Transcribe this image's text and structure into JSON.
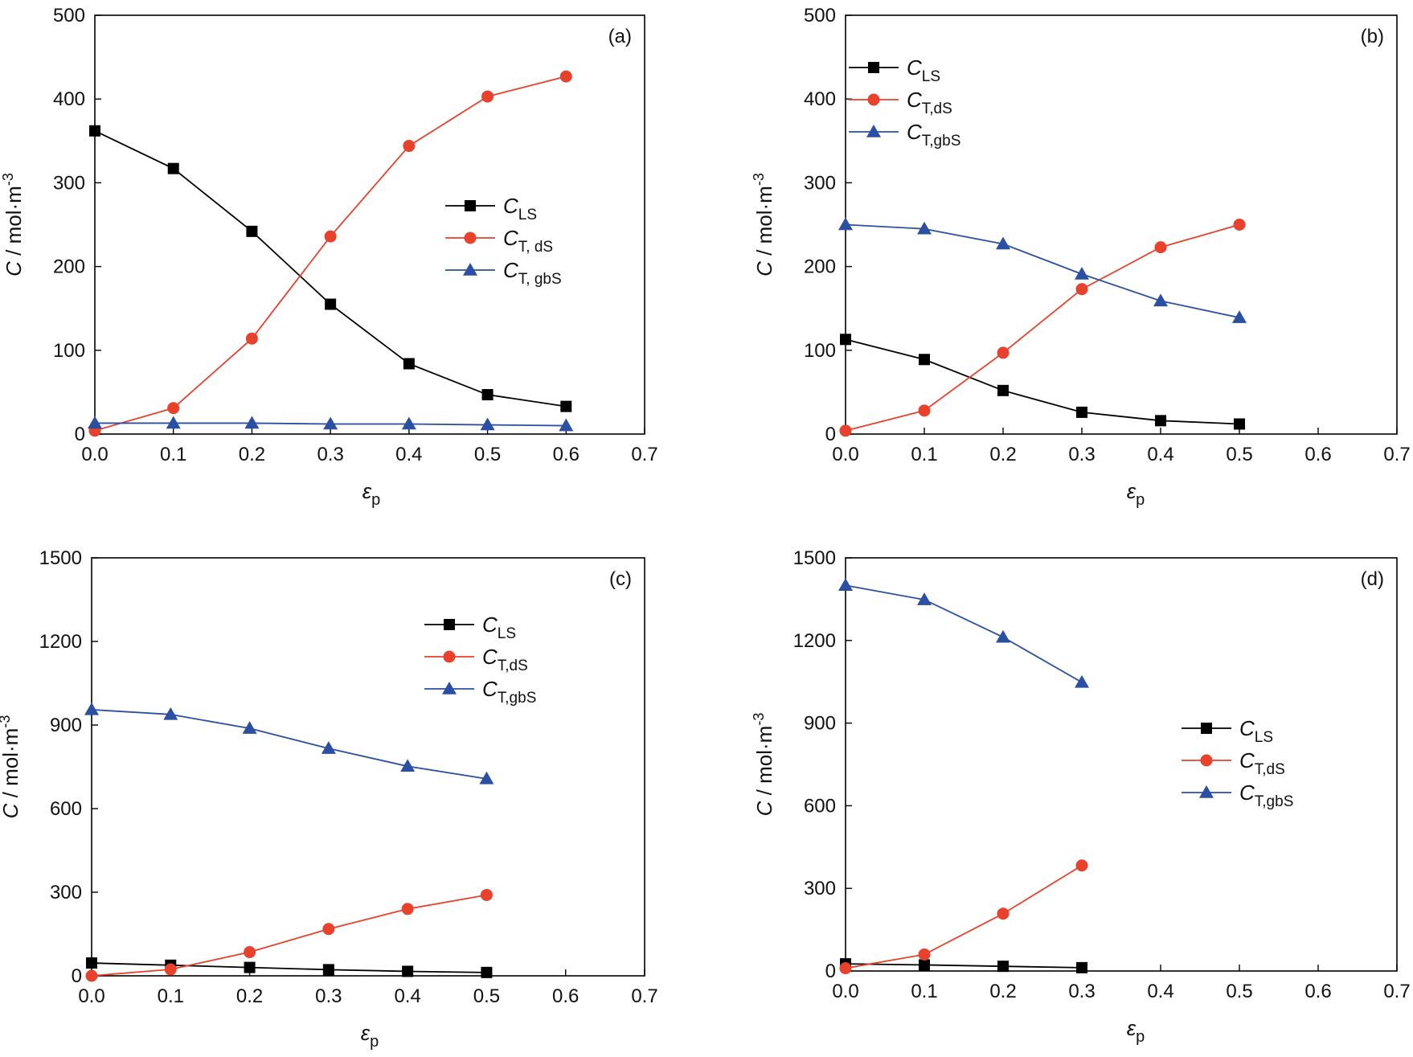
{
  "colors": {
    "CLS": "#000000",
    "CTdS": "#e8412c",
    "CTgbS": "#2a4fa3"
  },
  "chart_data": [
    {
      "type": "line",
      "panel_label": "(a)",
      "x": [
        0.0,
        0.1,
        0.2,
        0.3,
        0.4,
        0.5,
        0.6
      ],
      "xlim": [
        0,
        0.7
      ],
      "ylim": [
        0,
        500
      ],
      "xticks": [
        0.0,
        0.1,
        0.2,
        0.3,
        0.4,
        0.5,
        0.6,
        0.7
      ],
      "yticks": [
        0,
        100,
        200,
        300,
        400,
        500
      ],
      "xlabel": {
        "main": "ε",
        "sub": "p"
      },
      "ylabel": {
        "main": "C",
        "rest": " / mol·m",
        "sup": "-3"
      },
      "legend_position": "right-middle",
      "series": [
        {
          "key": "CLS",
          "label_main": "C",
          "label_sub": "LS",
          "marker": "square",
          "values": [
            362,
            317,
            242,
            155,
            84,
            47,
            33
          ]
        },
        {
          "key": "CTdS",
          "label_main": "C",
          "label_sub": "T, dS",
          "marker": "circle",
          "values": [
            4,
            31,
            114,
            236,
            344,
            403,
            427
          ]
        },
        {
          "key": "CTgbS",
          "label_main": "C",
          "label_sub": "T, gbS",
          "marker": "triangle",
          "values": [
            13,
            13,
            13,
            12,
            12,
            11,
            10
          ]
        }
      ]
    },
    {
      "type": "line",
      "panel_label": "(b)",
      "x": [
        0.0,
        0.1,
        0.2,
        0.3,
        0.4,
        0.5
      ],
      "xlim": [
        0,
        0.7
      ],
      "ylim": [
        0,
        500
      ],
      "xticks": [
        0.0,
        0.1,
        0.2,
        0.3,
        0.4,
        0.5,
        0.6,
        0.7
      ],
      "yticks": [
        0,
        100,
        200,
        300,
        400,
        500
      ],
      "xlabel": {
        "main": "ε",
        "sub": "p"
      },
      "ylabel": {
        "main": "C",
        "rest": " / mol·m",
        "sup": "-3"
      },
      "legend_position": "top-left",
      "series": [
        {
          "key": "CLS",
          "label_main": "C",
          "label_sub": "LS",
          "marker": "square",
          "values": [
            113,
            89,
            52,
            26,
            16,
            12
          ]
        },
        {
          "key": "CTdS",
          "label_main": "C",
          "label_sub": "T,dS",
          "marker": "circle",
          "values": [
            4,
            28,
            97,
            173,
            223,
            250
          ]
        },
        {
          "key": "CTgbS",
          "label_main": "C",
          "label_sub": "T,gbS",
          "marker": "triangle",
          "values": [
            250,
            245,
            227,
            191,
            159,
            139
          ]
        }
      ]
    },
    {
      "type": "line",
      "panel_label": "(c)",
      "x": [
        0.0,
        0.1,
        0.2,
        0.3,
        0.4,
        0.5
      ],
      "xlim": [
        0,
        0.7
      ],
      "ylim": [
        0,
        1500
      ],
      "xticks": [
        0.0,
        0.1,
        0.2,
        0.3,
        0.4,
        0.5,
        0.6,
        0.7
      ],
      "yticks": [
        0,
        300,
        600,
        900,
        1200,
        1500
      ],
      "xlabel": {
        "main": "ε",
        "sub": "p"
      },
      "ylabel": {
        "main": "C",
        "rest": " / mol·m",
        "sup": "-3"
      },
      "legend_position": "top-right",
      "series": [
        {
          "key": "CLS",
          "label_main": "C",
          "label_sub": "LS",
          "marker": "square",
          "values": [
            46,
            38,
            30,
            22,
            16,
            12
          ]
        },
        {
          "key": "CTdS",
          "label_main": "C",
          "label_sub": "T,dS",
          "marker": "circle",
          "values": [
            0,
            23,
            85,
            168,
            240,
            290
          ]
        },
        {
          "key": "CTgbS",
          "label_main": "C",
          "label_sub": "T,gbS",
          "marker": "triangle",
          "values": [
            955,
            938,
            888,
            816,
            752,
            707
          ]
        }
      ]
    },
    {
      "type": "line",
      "panel_label": "(d)",
      "x": [
        0.0,
        0.1,
        0.2,
        0.3
      ],
      "xlim": [
        0,
        0.7
      ],
      "ylim": [
        0,
        1500
      ],
      "xticks": [
        0.0,
        0.1,
        0.2,
        0.3,
        0.4,
        0.5,
        0.6,
        0.7
      ],
      "yticks": [
        0,
        300,
        600,
        900,
        1200,
        1500
      ],
      "xlabel": {
        "main": "ε",
        "sub": "p"
      },
      "ylabel": {
        "main": "C",
        "rest": " / mol·m",
        "sup": "-3"
      },
      "legend_position": "right-middle",
      "series": [
        {
          "key": "CLS",
          "label_main": "C",
          "label_sub": "LS",
          "marker": "square",
          "values": [
            26,
            22,
            17,
            12
          ]
        },
        {
          "key": "CTdS",
          "label_main": "C",
          "label_sub": "T,dS",
          "marker": "circle",
          "values": [
            10,
            60,
            208,
            383
          ]
        },
        {
          "key": "CTgbS",
          "label_main": "C",
          "label_sub": "T,gbS",
          "marker": "triangle",
          "values": [
            1400,
            1348,
            1212,
            1048
          ]
        }
      ]
    }
  ]
}
